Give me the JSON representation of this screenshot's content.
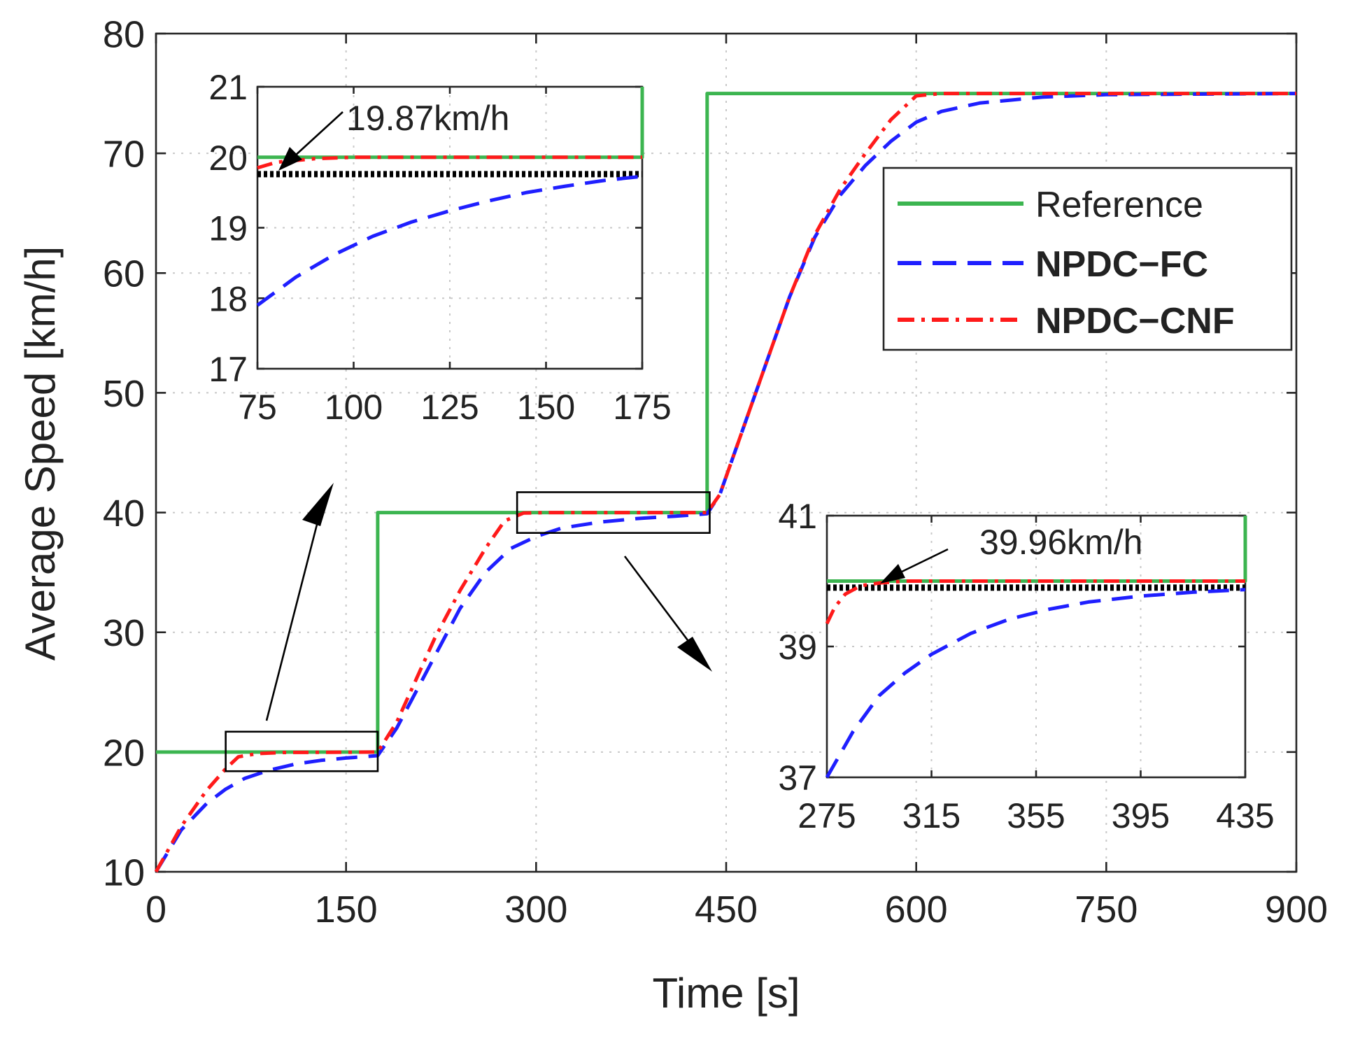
{
  "chart_data": [
    {
      "id": "main",
      "type": "line",
      "xlabel": "Time [s]",
      "ylabel": "Average Speed [km/h]",
      "xlim": [
        0,
        900
      ],
      "ylim": [
        10,
        80
      ],
      "xticks": [
        0,
        150,
        300,
        450,
        600,
        750,
        900
      ],
      "yticks": [
        10,
        20,
        30,
        40,
        50,
        60,
        70,
        80
      ],
      "grid": true,
      "legend_position": "upper-right",
      "series": [
        {
          "name": "Reference",
          "color": "#3cb550",
          "style": "solid",
          "points": [
            [
              0,
              20
            ],
            [
              175,
              20
            ],
            [
              175,
              40
            ],
            [
              435,
              40
            ],
            [
              435,
              75
            ],
            [
              900,
              75
            ]
          ]
        },
        {
          "name": "NPDC−FC",
          "color": "#1f1fff",
          "style": "dashed",
          "points": [
            [
              0,
              10
            ],
            [
              20,
              13.5
            ],
            [
              40,
              15.7
            ],
            [
              55,
              16.9
            ],
            [
              70,
              17.8
            ],
            [
              90,
              18.5
            ],
            [
              110,
              19
            ],
            [
              130,
              19.3
            ],
            [
              150,
              19.5
            ],
            [
              175,
              19.7
            ],
            [
              190,
              22
            ],
            [
              205,
              25
            ],
            [
              220,
              28
            ],
            [
              240,
              32
            ],
            [
              260,
              35
            ],
            [
              280,
              37
            ],
            [
              300,
              38
            ],
            [
              320,
              38.7
            ],
            [
              350,
              39.2
            ],
            [
              380,
              39.5
            ],
            [
              410,
              39.7
            ],
            [
              435,
              39.9
            ],
            [
              445,
              41.5
            ],
            [
              460,
              46
            ],
            [
              480,
              52
            ],
            [
              500,
              58
            ],
            [
              520,
              63
            ],
            [
              540,
              66.5
            ],
            [
              560,
              69
            ],
            [
              580,
              71
            ],
            [
              600,
              72.6
            ],
            [
              620,
              73.5
            ],
            [
              650,
              74.2
            ],
            [
              700,
              74.7
            ],
            [
              750,
              74.9
            ],
            [
              900,
              75
            ]
          ]
        },
        {
          "name": "NPDC−CNF",
          "color": "#ff1a1a",
          "style": "dashdot",
          "points": [
            [
              0,
              10
            ],
            [
              20,
              13.8
            ],
            [
              40,
              16.8
            ],
            [
              55,
              18.6
            ],
            [
              65,
              19.6
            ],
            [
              80,
              19.87
            ],
            [
              100,
              19.96
            ],
            [
              175,
              20
            ],
            [
              190,
              22.5
            ],
            [
              205,
              26
            ],
            [
              220,
              29.5
            ],
            [
              240,
              33.5
            ],
            [
              260,
              37
            ],
            [
              275,
              39.3
            ],
            [
              290,
              39.96
            ],
            [
              310,
              40
            ],
            [
              435,
              40
            ],
            [
              445,
              41.5
            ],
            [
              460,
              46
            ],
            [
              480,
              52
            ],
            [
              500,
              58
            ],
            [
              520,
              63.2
            ],
            [
              540,
              67
            ],
            [
              560,
              70
            ],
            [
              580,
              72.8
            ],
            [
              600,
              74.8
            ],
            [
              620,
              75
            ],
            [
              900,
              75
            ]
          ]
        }
      ],
      "zoom_boxes": [
        {
          "x": [
            55,
            175
          ],
          "y": [
            18.4,
            21.7
          ]
        },
        {
          "x": [
            285,
            437
          ],
          "y": [
            38.3,
            41.7
          ]
        }
      ]
    },
    {
      "id": "inset1",
      "type": "line",
      "title": "",
      "xlim": [
        75,
        175
      ],
      "ylim": [
        17,
        21
      ],
      "xticks": [
        75,
        100,
        125,
        150,
        175
      ],
      "yticks": [
        17,
        18,
        19,
        20,
        21
      ],
      "grid": true,
      "annotation": {
        "text": "19.87km/h",
        "value": 19.87
      },
      "series": [
        {
          "name": "Reference",
          "color": "#3cb550",
          "style": "solid",
          "points": [
            [
              75,
              20
            ],
            [
              175,
              20
            ],
            [
              175,
              21
            ]
          ]
        },
        {
          "name": "NPDC−FC",
          "color": "#1f1fff",
          "style": "dashed",
          "points": [
            [
              75,
              17.9
            ],
            [
              85,
              18.3
            ],
            [
              95,
              18.62
            ],
            [
              105,
              18.88
            ],
            [
              115,
              19.08
            ],
            [
              125,
              19.24
            ],
            [
              135,
              19.38
            ],
            [
              145,
              19.5
            ],
            [
              155,
              19.59
            ],
            [
              165,
              19.67
            ],
            [
              175,
              19.73
            ]
          ]
        },
        {
          "name": "NPDC−CNF",
          "color": "#ff1a1a",
          "style": "dashdot",
          "points": [
            [
              75,
              19.85
            ],
            [
              80,
              19.93
            ],
            [
              90,
              19.98
            ],
            [
              100,
              20
            ],
            [
              175,
              20
            ]
          ]
        },
        {
          "name": "level",
          "color": "#000000",
          "style": "dotted",
          "points": [
            [
              75,
              19.76
            ],
            [
              175,
              19.76
            ]
          ]
        }
      ]
    },
    {
      "id": "inset2",
      "type": "line",
      "title": "",
      "xlim": [
        275,
        435
      ],
      "ylim": [
        37,
        41
      ],
      "xticks": [
        275,
        315,
        355,
        395,
        435
      ],
      "yticks": [
        37,
        39,
        41
      ],
      "grid": true,
      "annotation": {
        "text": "39.96km/h",
        "value": 39.96
      },
      "series": [
        {
          "name": "Reference",
          "color": "#3cb550",
          "style": "solid",
          "points": [
            [
              275,
              40
            ],
            [
              435,
              40
            ],
            [
              435,
              41
            ]
          ]
        },
        {
          "name": "NPDC−FC",
          "color": "#1f1fff",
          "style": "dashed",
          "points": [
            [
              275,
              37
            ],
            [
              285,
              37.7
            ],
            [
              295,
              38.25
            ],
            [
              305,
              38.6
            ],
            [
              315,
              38.88
            ],
            [
              330,
              39.2
            ],
            [
              345,
              39.42
            ],
            [
              360,
              39.57
            ],
            [
              375,
              39.68
            ],
            [
              395,
              39.77
            ],
            [
              415,
              39.83
            ],
            [
              435,
              39.87
            ]
          ]
        },
        {
          "name": "NPDC−CNF",
          "color": "#ff1a1a",
          "style": "dashdot",
          "points": [
            [
              275,
              39.35
            ],
            [
              278,
              39.6
            ],
            [
              282,
              39.8
            ],
            [
              288,
              39.93
            ],
            [
              295,
              39.97
            ],
            [
              305,
              40
            ],
            [
              435,
              40
            ]
          ]
        },
        {
          "name": "level",
          "color": "#000000",
          "style": "dotted",
          "points": [
            [
              275,
              39.9
            ],
            [
              435,
              39.9
            ]
          ]
        }
      ]
    }
  ]
}
